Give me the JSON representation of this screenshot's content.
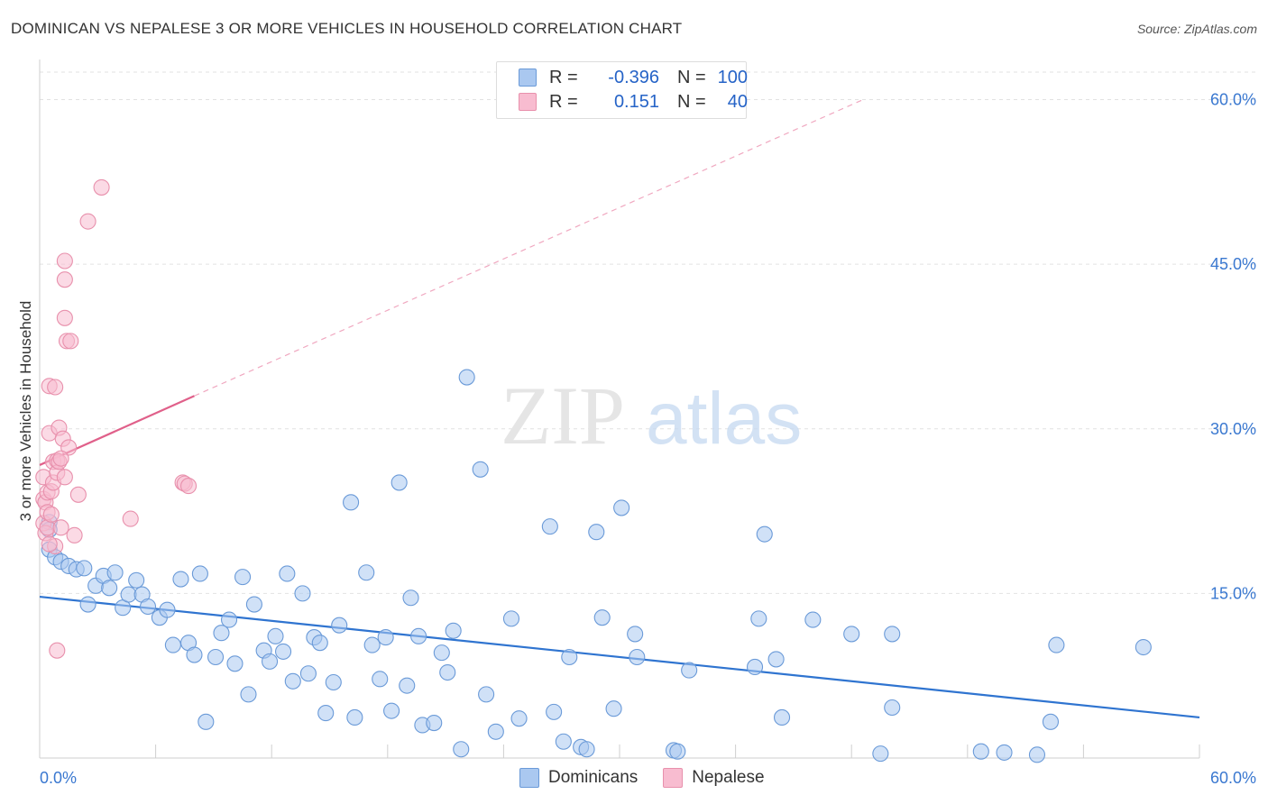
{
  "title": "DOMINICAN VS NEPALESE 3 OR MORE VEHICLES IN HOUSEHOLD CORRELATION CHART",
  "source": "Source: ZipAtlas.com",
  "watermark": {
    "zip": "ZIP",
    "atlas": "atlas"
  },
  "legend": {
    "rows": [
      {
        "r_label": "R =",
        "r_value": "-0.396",
        "n_label": "N =",
        "n_value": "100",
        "color": "#aac8f0",
        "border": "#6a9ad8"
      },
      {
        "r_label": "R =",
        "r_value": "0.151",
        "n_label": "N =",
        "n_value": "40",
        "color": "#f8bcd0",
        "border": "#e890ac"
      }
    ]
  },
  "bottom_legend": [
    {
      "label": "Dominicans",
      "color": "#aac8f0",
      "border": "#6a9ad8"
    },
    {
      "label": "Nepalese",
      "color": "#f8bcd0",
      "border": "#e890ac"
    }
  ],
  "chart_data": {
    "type": "scatter",
    "title": "DOMINICAN VS NEPALESE 3 OR MORE VEHICLES IN HOUSEHOLD CORRELATION CHART",
    "ylabel": "3 or more Vehicles in Household",
    "xlabel": "",
    "xlim": [
      0,
      60
    ],
    "ylim": [
      0,
      63
    ],
    "x_tick_labels": [
      "0.0%",
      "60.0%"
    ],
    "y_ticks": [
      15,
      30,
      45,
      60
    ],
    "y_tick_labels": [
      "15.0%",
      "30.0%",
      "45.0%",
      "60.0%"
    ],
    "grid": true,
    "series": [
      {
        "name": "Dominicans",
        "color": "#aac8f0",
        "stroke": "#6a9ad8",
        "trend": {
          "x": [
            0,
            60
          ],
          "y": [
            14.7,
            3.7
          ],
          "color": "#2f74d0"
        },
        "points": [
          [
            0.5,
            21.5
          ],
          [
            0.5,
            20.8
          ],
          [
            0.5,
            19.0
          ],
          [
            0.8,
            18.3
          ],
          [
            1.1,
            17.9
          ],
          [
            1.5,
            17.5
          ],
          [
            1.9,
            17.2
          ],
          [
            2.3,
            17.3
          ],
          [
            2.5,
            14.0
          ],
          [
            2.9,
            15.7
          ],
          [
            3.3,
            16.6
          ],
          [
            3.6,
            15.5
          ],
          [
            3.9,
            16.9
          ],
          [
            4.3,
            13.7
          ],
          [
            4.6,
            14.9
          ],
          [
            5.0,
            16.2
          ],
          [
            5.3,
            14.9
          ],
          [
            5.6,
            13.8
          ],
          [
            6.2,
            12.8
          ],
          [
            6.6,
            13.5
          ],
          [
            6.9,
            10.3
          ],
          [
            7.3,
            16.3
          ],
          [
            7.7,
            10.5
          ],
          [
            8.0,
            9.4
          ],
          [
            8.3,
            16.8
          ],
          [
            8.6,
            3.3
          ],
          [
            9.1,
            9.2
          ],
          [
            9.4,
            11.4
          ],
          [
            9.8,
            12.6
          ],
          [
            10.1,
            8.6
          ],
          [
            10.5,
            16.5
          ],
          [
            10.8,
            5.8
          ],
          [
            11.1,
            14.0
          ],
          [
            11.6,
            9.8
          ],
          [
            11.9,
            8.8
          ],
          [
            12.2,
            11.1
          ],
          [
            12.6,
            9.7
          ],
          [
            12.8,
            16.8
          ],
          [
            13.1,
            7.0
          ],
          [
            13.6,
            15.0
          ],
          [
            13.9,
            7.7
          ],
          [
            14.2,
            11.0
          ],
          [
            14.5,
            10.5
          ],
          [
            14.8,
            4.1
          ],
          [
            15.2,
            6.9
          ],
          [
            15.5,
            12.1
          ],
          [
            16.1,
            23.3
          ],
          [
            16.3,
            3.7
          ],
          [
            16.9,
            16.9
          ],
          [
            17.2,
            10.3
          ],
          [
            17.6,
            7.2
          ],
          [
            17.9,
            11.0
          ],
          [
            18.2,
            4.3
          ],
          [
            18.6,
            25.1
          ],
          [
            19.0,
            6.6
          ],
          [
            19.2,
            14.6
          ],
          [
            19.6,
            11.1
          ],
          [
            19.8,
            3.0
          ],
          [
            20.4,
            3.2
          ],
          [
            20.8,
            9.6
          ],
          [
            21.1,
            7.8
          ],
          [
            21.4,
            11.6
          ],
          [
            21.8,
            0.8
          ],
          [
            22.1,
            34.7
          ],
          [
            22.8,
            26.3
          ],
          [
            23.1,
            5.8
          ],
          [
            23.6,
            2.4
          ],
          [
            24.4,
            12.7
          ],
          [
            24.8,
            3.6
          ],
          [
            26.4,
            21.1
          ],
          [
            26.6,
            4.2
          ],
          [
            27.1,
            1.5
          ],
          [
            27.4,
            9.2
          ],
          [
            28.0,
            1.0
          ],
          [
            28.3,
            0.8
          ],
          [
            28.8,
            20.6
          ],
          [
            29.1,
            12.8
          ],
          [
            29.7,
            4.5
          ],
          [
            30.1,
            22.8
          ],
          [
            30.8,
            11.3
          ],
          [
            30.9,
            9.2
          ],
          [
            32.8,
            0.7
          ],
          [
            33.0,
            0.6
          ],
          [
            33.6,
            8.0
          ],
          [
            37.0,
            8.3
          ],
          [
            37.2,
            12.7
          ],
          [
            37.5,
            20.4
          ],
          [
            38.1,
            9.0
          ],
          [
            38.4,
            3.7
          ],
          [
            40.0,
            12.6
          ],
          [
            42.0,
            11.3
          ],
          [
            43.5,
            0.4
          ],
          [
            44.1,
            4.6
          ],
          [
            44.1,
            11.3
          ],
          [
            48.7,
            0.6
          ],
          [
            49.9,
            0.5
          ],
          [
            51.6,
            0.3
          ],
          [
            52.3,
            3.3
          ],
          [
            52.6,
            10.3
          ],
          [
            57.1,
            10.1
          ]
        ]
      },
      {
        "name": "Nepalese",
        "color": "#f8bcd0",
        "stroke": "#e890ac",
        "trend": {
          "x": [
            0,
            8.0
          ],
          "y": [
            26.7,
            33.0
          ],
          "color": "#e0608a",
          "dashed_extension": {
            "x": [
              8.0,
              42.6
            ],
            "y": [
              33.0,
              60.0
            ]
          }
        },
        "points": [
          [
            0.2,
            25.6
          ],
          [
            0.2,
            23.6
          ],
          [
            0.2,
            21.4
          ],
          [
            0.3,
            20.5
          ],
          [
            0.3,
            23.3
          ],
          [
            0.4,
            24.2
          ],
          [
            0.4,
            21.0
          ],
          [
            0.4,
            22.4
          ],
          [
            0.5,
            33.9
          ],
          [
            0.5,
            29.6
          ],
          [
            0.6,
            24.3
          ],
          [
            0.6,
            22.2
          ],
          [
            0.7,
            27.0
          ],
          [
            0.7,
            25.1
          ],
          [
            0.8,
            33.8
          ],
          [
            0.8,
            19.3
          ],
          [
            0.9,
            9.8
          ],
          [
            0.9,
            27.1
          ],
          [
            0.9,
            26.0
          ],
          [
            1.0,
            27.0
          ],
          [
            1.0,
            30.1
          ],
          [
            1.1,
            21.0
          ],
          [
            1.2,
            29.1
          ],
          [
            1.3,
            25.6
          ],
          [
            1.3,
            40.1
          ],
          [
            1.3,
            45.3
          ],
          [
            1.3,
            43.6
          ],
          [
            1.4,
            38.0
          ],
          [
            1.5,
            28.3
          ],
          [
            1.6,
            38.0
          ],
          [
            1.8,
            20.3
          ],
          [
            2.0,
            24.0
          ],
          [
            2.5,
            48.9
          ],
          [
            3.2,
            52.0
          ],
          [
            4.7,
            21.8
          ],
          [
            7.4,
            25.1
          ],
          [
            7.5,
            25.0
          ],
          [
            7.7,
            24.8
          ],
          [
            0.5,
            19.5
          ],
          [
            1.1,
            27.3
          ]
        ]
      }
    ]
  }
}
